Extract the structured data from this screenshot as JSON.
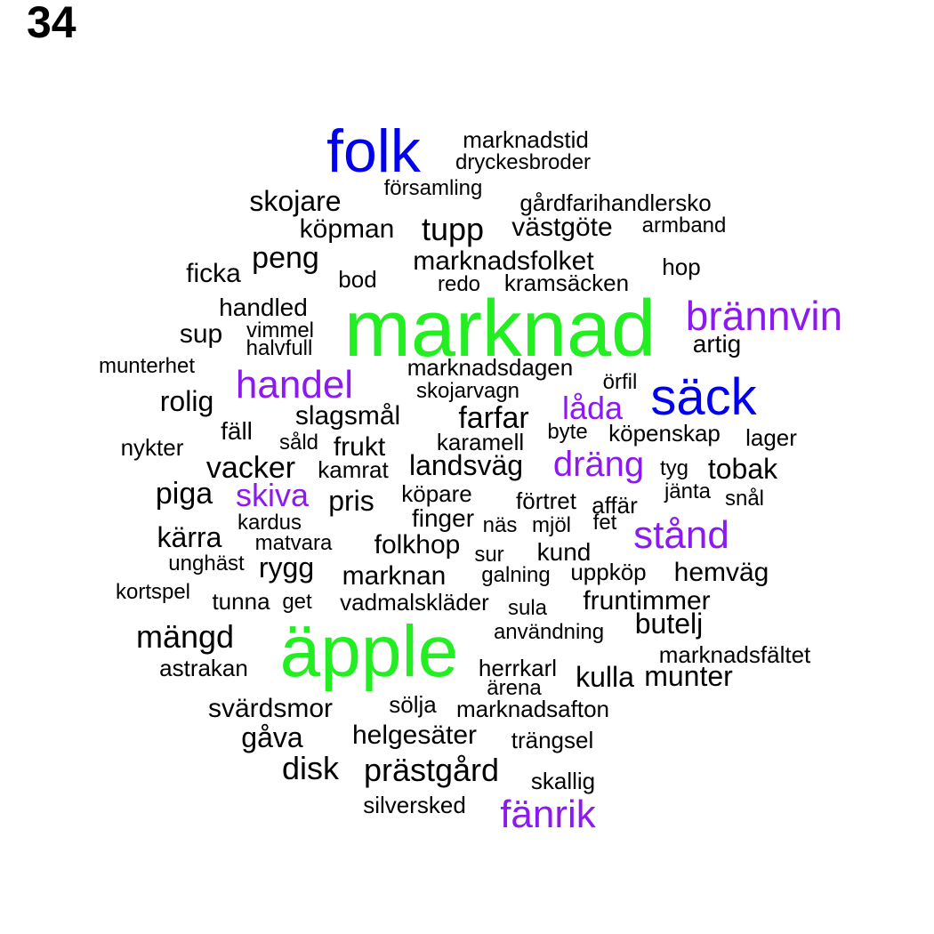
{
  "page_number": "34",
  "colors": {
    "black": "#000000",
    "blue": "#0000ee",
    "green": "#22ee22",
    "purple": "#8c1aee"
  },
  "words": [
    {
      "text": "marknad",
      "color": "green"
    },
    {
      "text": "äpple",
      "color": "green"
    },
    {
      "text": "folk",
      "color": "blue"
    },
    {
      "text": "säck",
      "color": "blue"
    },
    {
      "text": "brännvin",
      "color": "purple"
    },
    {
      "text": "handel",
      "color": "purple"
    },
    {
      "text": "stånd",
      "color": "purple"
    },
    {
      "text": "dräng",
      "color": "purple"
    },
    {
      "text": "fänrik",
      "color": "purple"
    },
    {
      "text": "låda",
      "color": "purple"
    },
    {
      "text": "skiva",
      "color": "purple"
    },
    {
      "text": "marknadstid",
      "color": "black"
    },
    {
      "text": "dryckesbroder",
      "color": "black"
    },
    {
      "text": "församling",
      "color": "black"
    },
    {
      "text": "skojare",
      "color": "black"
    },
    {
      "text": "gårdfarihandlersko",
      "color": "black"
    },
    {
      "text": "köpman",
      "color": "black"
    },
    {
      "text": "tupp",
      "color": "black"
    },
    {
      "text": "västgöte",
      "color": "black"
    },
    {
      "text": "armband",
      "color": "black"
    },
    {
      "text": "peng",
      "color": "black"
    },
    {
      "text": "marknadsfolket",
      "color": "black"
    },
    {
      "text": "hop",
      "color": "black"
    },
    {
      "text": "ficka",
      "color": "black"
    },
    {
      "text": "bod",
      "color": "black"
    },
    {
      "text": "redo",
      "color": "black"
    },
    {
      "text": "kramsäcken",
      "color": "black"
    },
    {
      "text": "handled",
      "color": "black"
    },
    {
      "text": "sup",
      "color": "black"
    },
    {
      "text": "vimmel",
      "color": "black"
    },
    {
      "text": "halvfull",
      "color": "black"
    },
    {
      "text": "artig",
      "color": "black"
    },
    {
      "text": "munterhet",
      "color": "black"
    },
    {
      "text": "marknadsdagen",
      "color": "black"
    },
    {
      "text": "örfil",
      "color": "black"
    },
    {
      "text": "skojarvagn",
      "color": "black"
    },
    {
      "text": "rolig",
      "color": "black"
    },
    {
      "text": "slagsmål",
      "color": "black"
    },
    {
      "text": "farfar",
      "color": "black"
    },
    {
      "text": "fäll",
      "color": "black"
    },
    {
      "text": "byte",
      "color": "black"
    },
    {
      "text": "köpenskap",
      "color": "black"
    },
    {
      "text": "lager",
      "color": "black"
    },
    {
      "text": "nykter",
      "color": "black"
    },
    {
      "text": "såld",
      "color": "black"
    },
    {
      "text": "frukt",
      "color": "black"
    },
    {
      "text": "karamell",
      "color": "black"
    },
    {
      "text": "vacker",
      "color": "black"
    },
    {
      "text": "kamrat",
      "color": "black"
    },
    {
      "text": "landsväg",
      "color": "black"
    },
    {
      "text": "tyg",
      "color": "black"
    },
    {
      "text": "tobak",
      "color": "black"
    },
    {
      "text": "piga",
      "color": "black"
    },
    {
      "text": "pris",
      "color": "black"
    },
    {
      "text": "köpare",
      "color": "black"
    },
    {
      "text": "förtret",
      "color": "black"
    },
    {
      "text": "jänta",
      "color": "black"
    },
    {
      "text": "affär",
      "color": "black"
    },
    {
      "text": "snål",
      "color": "black"
    },
    {
      "text": "kardus",
      "color": "black"
    },
    {
      "text": "finger",
      "color": "black"
    },
    {
      "text": "näs",
      "color": "black"
    },
    {
      "text": "mjöl",
      "color": "black"
    },
    {
      "text": "fet",
      "color": "black"
    },
    {
      "text": "kärra",
      "color": "black"
    },
    {
      "text": "matvara",
      "color": "black"
    },
    {
      "text": "folkhop",
      "color": "black"
    },
    {
      "text": "sur",
      "color": "black"
    },
    {
      "text": "kund",
      "color": "black"
    },
    {
      "text": "unghäst",
      "color": "black"
    },
    {
      "text": "rygg",
      "color": "black"
    },
    {
      "text": "marknan",
      "color": "black"
    },
    {
      "text": "galning",
      "color": "black"
    },
    {
      "text": "uppköp",
      "color": "black"
    },
    {
      "text": "hemväg",
      "color": "black"
    },
    {
      "text": "kortspel",
      "color": "black"
    },
    {
      "text": "tunna",
      "color": "black"
    },
    {
      "text": "get",
      "color": "black"
    },
    {
      "text": "vadmalskläder",
      "color": "black"
    },
    {
      "text": "sula",
      "color": "black"
    },
    {
      "text": "fruntimmer",
      "color": "black"
    },
    {
      "text": "butelj",
      "color": "black"
    },
    {
      "text": "mängd",
      "color": "black"
    },
    {
      "text": "användning",
      "color": "black"
    },
    {
      "text": "marknadsfältet",
      "color": "black"
    },
    {
      "text": "astrakan",
      "color": "black"
    },
    {
      "text": "herrkarl",
      "color": "black"
    },
    {
      "text": "kulla",
      "color": "black"
    },
    {
      "text": "munter",
      "color": "black"
    },
    {
      "text": "ärena",
      "color": "black"
    },
    {
      "text": "svärdsmor",
      "color": "black"
    },
    {
      "text": "sölja",
      "color": "black"
    },
    {
      "text": "marknadsafton",
      "color": "black"
    },
    {
      "text": "gåva",
      "color": "black"
    },
    {
      "text": "helgesäter",
      "color": "black"
    },
    {
      "text": "trängsel",
      "color": "black"
    },
    {
      "text": "disk",
      "color": "black"
    },
    {
      "text": "prästgård",
      "color": "black"
    },
    {
      "text": "skallig",
      "color": "black"
    },
    {
      "text": "silversked",
      "color": "black"
    }
  ]
}
